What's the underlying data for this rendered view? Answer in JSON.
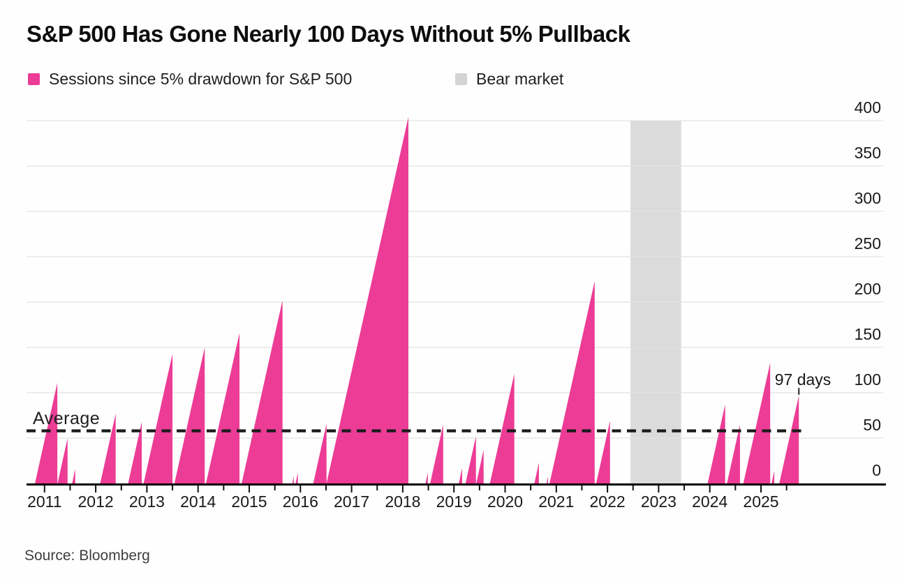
{
  "title": "S&P 500 Has Gone Nearly 100 Days Without 5% Pullback",
  "legend": [
    {
      "label": "Sessions since 5% drawdown for S&P 500",
      "color": "#ec3c95"
    },
    {
      "label": "Bear market",
      "color": "#d4d4d4"
    }
  ],
  "annotations": {
    "average_label": "Average",
    "peak_label": "97 days"
  },
  "source": "Source: Bloomberg",
  "colors": {
    "series": "#ec3c95",
    "bear_band": "#dbdbdb",
    "grid": "#e3e3e3",
    "axis": "#000000",
    "average_line": "#1b1b1b",
    "tick_text": "#1a1a1a",
    "annotation_pointer": "#2a2a2a"
  },
  "chart_data": {
    "type": "area",
    "title": "S&P 500 Has Gone Nearly 100 Days Without 5% Pullback",
    "series_name": "Sessions since 5% drawdown for S&P 500",
    "xlabel": "",
    "ylabel": "",
    "ylim": [
      0,
      400
    ],
    "y_ticks": [
      0,
      50,
      100,
      150,
      200,
      250,
      300,
      350,
      400
    ],
    "x_years": [
      2011,
      2012,
      2013,
      2014,
      2015,
      2016,
      2017,
      2018,
      2019,
      2020,
      2021,
      2022,
      2023,
      2024,
      2025
    ],
    "x_minor_tick_step_years": 0.5,
    "x_range_years": [
      2010.65,
      2025.9
    ],
    "grid": true,
    "legend_position": "top-left",
    "sessions_per_year": 252,
    "average_value": 58,
    "bear_market_band": {
      "start_year": 2022.45,
      "end_year": 2023.44
    },
    "sawtooth_peaks": [
      {
        "year": 2011.25,
        "value": 111
      },
      {
        "year": 2011.45,
        "value": 50
      },
      {
        "year": 2011.6,
        "value": 16
      },
      {
        "year": 2012.39,
        "value": 77
      },
      {
        "year": 2012.9,
        "value": 68
      },
      {
        "year": 2013.5,
        "value": 143
      },
      {
        "year": 2014.13,
        "value": 150
      },
      {
        "year": 2014.81,
        "value": 166
      },
      {
        "year": 2015.65,
        "value": 202
      },
      {
        "year": 2015.87,
        "value": 8
      },
      {
        "year": 2015.95,
        "value": 12
      },
      {
        "year": 2016.51,
        "value": 66
      },
      {
        "year": 2018.11,
        "value": 404
      },
      {
        "year": 2018.49,
        "value": 12
      },
      {
        "year": 2018.79,
        "value": 65
      },
      {
        "year": 2019.16,
        "value": 17
      },
      {
        "year": 2019.43,
        "value": 52
      },
      {
        "year": 2019.58,
        "value": 37
      },
      {
        "year": 2020.18,
        "value": 121
      },
      {
        "year": 2020.66,
        "value": 23
      },
      {
        "year": 2020.84,
        "value": 8
      },
      {
        "year": 2021.75,
        "value": 223
      },
      {
        "year": 2022.05,
        "value": 69
      },
      {
        "year": 2024.3,
        "value": 87
      },
      {
        "year": 2024.59,
        "value": 65
      },
      {
        "year": 2025.18,
        "value": 133
      },
      {
        "year": 2025.26,
        "value": 14
      },
      {
        "year": 2025.74,
        "value": 97
      }
    ],
    "current_streak_annotation": {
      "year": 2025.74,
      "value": 97,
      "text": "97 days"
    }
  }
}
